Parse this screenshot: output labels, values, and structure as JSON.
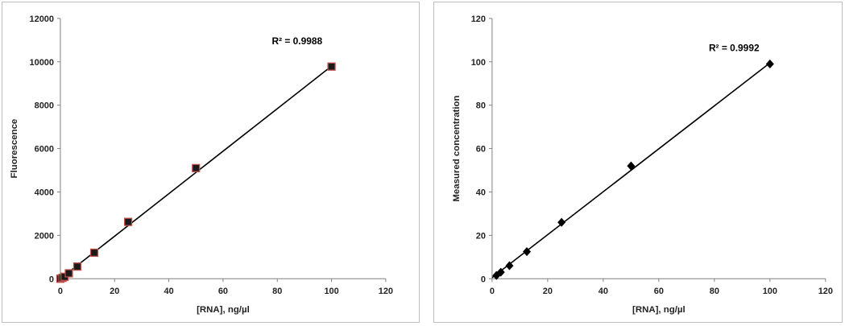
{
  "chart_data": [
    {
      "type": "scatter",
      "title": "",
      "xlabel": "[RNA], ng/µl",
      "ylabel": "Fluorescence",
      "xlim": [
        0,
        120
      ],
      "ylim": [
        0,
        12000
      ],
      "xticks": [
        0,
        20,
        40,
        60,
        80,
        100,
        120
      ],
      "yticks": [
        0,
        2000,
        4000,
        6000,
        8000,
        10000,
        12000
      ],
      "grid": false,
      "marker": "square",
      "marker_color": "#1a1a1a",
      "marker_edge": "#c0504d",
      "points": [
        {
          "x": 0,
          "y": 0
        },
        {
          "x": 0.78,
          "y": 40
        },
        {
          "x": 1.56,
          "y": 90
        },
        {
          "x": 3.13,
          "y": 250
        },
        {
          "x": 6.25,
          "y": 560
        },
        {
          "x": 12.5,
          "y": 1200
        },
        {
          "x": 25,
          "y": 2620
        },
        {
          "x": 50,
          "y": 5100
        },
        {
          "x": 100,
          "y": 9780
        }
      ],
      "trendline": {
        "x": [
          0,
          100
        ],
        "y": [
          0,
          9800
        ]
      },
      "annotation": "R² = 0.9988",
      "annotation_at": {
        "x": 78,
        "y": 10800
      }
    },
    {
      "type": "scatter",
      "title": "",
      "xlabel": "[RNA], ng/µl",
      "ylabel": "Measured  concentration",
      "xlim": [
        0,
        120
      ],
      "ylim": [
        0,
        120
      ],
      "xticks": [
        0,
        20,
        40,
        60,
        80,
        100,
        120
      ],
      "yticks": [
        0,
        20,
        40,
        60,
        80,
        100,
        120
      ],
      "grid": false,
      "marker": "diamond",
      "marker_color": "#000000",
      "marker_edge": "#000000",
      "points": [
        {
          "x": 1.56,
          "y": 1.5
        },
        {
          "x": 3.13,
          "y": 3.0
        },
        {
          "x": 6.25,
          "y": 6.0
        },
        {
          "x": 12.5,
          "y": 12.5
        },
        {
          "x": 25,
          "y": 26
        },
        {
          "x": 50,
          "y": 52
        },
        {
          "x": 100,
          "y": 99
        }
      ],
      "trendline": {
        "x": [
          0,
          100
        ],
        "y": [
          0.5,
          99.5
        ]
      },
      "annotation": "R² = 0.9992",
      "annotation_at": {
        "x": 78,
        "y": 105
      }
    }
  ]
}
